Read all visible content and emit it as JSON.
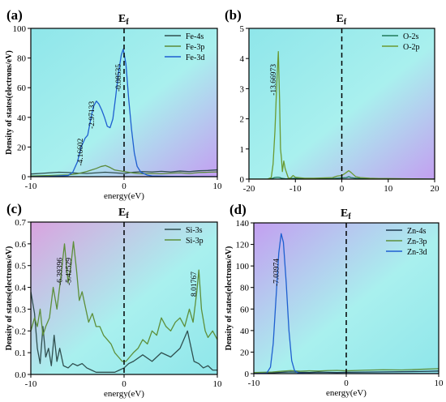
{
  "figure": {
    "fermi_label": "E",
    "fermi_sub": "f"
  },
  "chart_data": [
    {
      "type": "line",
      "panel_label": "(a)",
      "xlabel": "energy(eV)",
      "ylabel": "Density of states(electrons/eV)",
      "xlim": [
        -10,
        10
      ],
      "ylim": [
        0,
        100
      ],
      "xticks": [
        -10,
        0,
        10
      ],
      "yticks": [
        0,
        20,
        40,
        60,
        80,
        100
      ],
      "fermi_x": 0,
      "background": {
        "left": "#8fe6ea",
        "right": "#c39ff0"
      },
      "legend": {
        "placement": "top-right"
      },
      "series": [
        {
          "name": "Fe-4s",
          "color": "#2f4f4f",
          "x": [
            -10,
            -9,
            -8,
            -7,
            -6,
            -5,
            -4,
            -3,
            -2,
            -1,
            0,
            1,
            2,
            3,
            4,
            5,
            6,
            7,
            8,
            9,
            10
          ],
          "y": [
            1.8,
            2.2,
            2.6,
            3.0,
            2.8,
            2.4,
            2.2,
            2.6,
            3.0,
            2.6,
            2.2,
            3.0,
            3.4,
            3.2,
            3.6,
            3.2,
            3.8,
            3.4,
            4.0,
            4.2,
            4.6
          ]
        },
        {
          "name": "Fe-3p",
          "color": "#5a8a3a",
          "x": [
            -10,
            -8,
            -6,
            -5,
            -4,
            -3.5,
            -3,
            -2.5,
            -2,
            -1.5,
            -1,
            0,
            1,
            2,
            3,
            4,
            5,
            6,
            7,
            8,
            9,
            10
          ],
          "y": [
            0.5,
            0.8,
            1.2,
            2.0,
            3.5,
            4.5,
            5.5,
            6.8,
            7.5,
            6.2,
            4.5,
            3.5,
            2.5,
            2.0,
            2.2,
            2.0,
            2.4,
            2.6,
            2.2,
            2.8,
            3.0,
            3.2
          ]
        },
        {
          "name": "Fe-3d",
          "color": "#1e5fd0",
          "x": [
            -10,
            -8,
            -6,
            -5.5,
            -5,
            -4.6,
            -4.17,
            -3.9,
            -3.6,
            -3.3,
            -2.97,
            -2.7,
            -2.4,
            -2.1,
            -1.8,
            -1.5,
            -1.2,
            -0.9,
            -0.6,
            -0.3,
            -0.09,
            0.2,
            0.5,
            0.8,
            1.1,
            1.4,
            1.8,
            2.5,
            3,
            5,
            7,
            10
          ],
          "y": [
            0,
            0.2,
            0.8,
            3,
            10,
            20,
            26,
            28,
            38,
            47,
            51,
            49,
            45,
            40,
            34,
            33,
            39,
            54,
            70,
            82,
            86,
            76,
            52,
            32,
            16,
            7,
            3,
            1,
            0.5,
            0.2,
            0.1,
            0
          ]
        }
      ],
      "annotations": [
        {
          "text": "-4.16602",
          "x": -4.17,
          "y": 27
        },
        {
          "text": "-2.97133",
          "x": -2.97,
          "y": 52
        },
        {
          "text": "-0.08535",
          "x": -0.09,
          "y": 87
        }
      ]
    },
    {
      "type": "line",
      "panel_label": "(b)",
      "xlabel": "",
      "ylabel": "",
      "xlim": [
        -20,
        20
      ],
      "ylim": [
        0,
        5
      ],
      "xticks": [
        -20,
        -10,
        0,
        10,
        20
      ],
      "yticks": [
        0,
        1,
        2,
        3,
        4,
        5
      ],
      "fermi_x": 0,
      "background": {
        "left": "#8fe6ea",
        "right": "#c39ff0"
      },
      "legend": {
        "placement": "top-right"
      },
      "series": [
        {
          "name": "O-2s",
          "color": "#1f7a5a",
          "x": [
            -20,
            -16,
            -15,
            -14.5,
            -14,
            -13.67,
            -13.3,
            -13,
            -12.5,
            -12,
            -11,
            -10,
            -8,
            -6,
            -4,
            -2,
            -1,
            0,
            1,
            1.5,
            2,
            3,
            5,
            10,
            15,
            20
          ],
          "y": [
            0,
            0,
            0.02,
            0.05,
            0.06,
            0.06,
            0.05,
            0.03,
            0.02,
            0.01,
            0.02,
            0.03,
            0.01,
            0.01,
            0.01,
            0.02,
            0.03,
            0.04,
            0.05,
            0.08,
            0.05,
            0.03,
            0.01,
            0.01,
            0.005,
            0
          ]
        },
        {
          "name": "O-2p",
          "color": "#6a9a32",
          "x": [
            -20,
            -16,
            -15.2,
            -14.8,
            -14.4,
            -14.0,
            -13.67,
            -13.4,
            -13.2,
            -13.0,
            -12.8,
            -12.5,
            -12.2,
            -11.5,
            -11,
            -10.5,
            -10,
            -8,
            -6,
            -4,
            -2,
            -1,
            0,
            0.8,
            1.5,
            2,
            2.5,
            3,
            4,
            6,
            8,
            10,
            15,
            20
          ],
          "y": [
            0,
            0,
            0.05,
            0.5,
            1.6,
            3.2,
            4.23,
            2.6,
            1.0,
            0.7,
            0.25,
            0.6,
            0.35,
            0.03,
            0.04,
            0.12,
            0.06,
            0.03,
            0.03,
            0.04,
            0.05,
            0.1,
            0.12,
            0.2,
            0.28,
            0.22,
            0.15,
            0.08,
            0.05,
            0.03,
            0.02,
            0.02,
            0.01,
            0
          ]
        }
      ],
      "annotations": [
        {
          "text": "-13.66973",
          "x": -13.67,
          "y": 4.2
        }
      ]
    },
    {
      "type": "line",
      "panel_label": "(c)",
      "xlabel": "energy(eV)",
      "ylabel": "Density of states(electrons/eV)",
      "xlim": [
        -10,
        10
      ],
      "ylim": [
        0,
        0.7
      ],
      "xticks": [
        -10,
        0,
        10
      ],
      "yticks": [
        0.0,
        0.1,
        0.2,
        0.3,
        0.4,
        0.5,
        0.6,
        0.7
      ],
      "fermi_x": 0,
      "background": {
        "left": "#d9a3df",
        "right": "#8fe6ea"
      },
      "legend": {
        "placement": "top-right"
      },
      "series": [
        {
          "name": "Si-3s",
          "color": "#2f4f4f",
          "x": [
            -10,
            -9.6,
            -9.3,
            -9.0,
            -8.7,
            -8.4,
            -8.1,
            -7.8,
            -7.5,
            -7.2,
            -6.9,
            -6.5,
            -6,
            -5.5,
            -5,
            -4.5,
            -4,
            -3.5,
            -3,
            -2.5,
            -2,
            -1.5,
            -1,
            -0.5,
            0,
            0.5,
            1,
            2,
            3,
            4,
            5,
            6,
            6.5,
            6.8,
            7,
            7.5,
            8,
            8.5,
            9,
            9.5,
            10
          ],
          "y": [
            0.38,
            0.28,
            0.12,
            0.05,
            0.22,
            0.08,
            0.12,
            0.04,
            0.18,
            0.06,
            0.12,
            0.04,
            0.03,
            0.05,
            0.04,
            0.05,
            0.03,
            0.02,
            0.01,
            0.01,
            0.01,
            0.01,
            0.01,
            0.02,
            0.03,
            0.05,
            0.06,
            0.09,
            0.06,
            0.1,
            0.08,
            0.12,
            0.17,
            0.2,
            0.16,
            0.06,
            0.05,
            0.03,
            0.04,
            0.02,
            0.02
          ]
        },
        {
          "name": "Si-3p",
          "color": "#5d8f3a",
          "x": [
            -10,
            -9.6,
            -9.3,
            -9.0,
            -8.7,
            -8.4,
            -8.0,
            -7.6,
            -7.2,
            -6.8,
            -6.39,
            -6.0,
            -5.7,
            -5.43,
            -5.1,
            -4.8,
            -4.5,
            -4.1,
            -3.8,
            -3.4,
            -3.0,
            -2.6,
            -2.2,
            -1.8,
            -1.4,
            -1.0,
            -0.6,
            -0.2,
            0.2,
            0.6,
            1.0,
            1.5,
            2.0,
            2.5,
            3.0,
            3.5,
            4.0,
            4.5,
            5.0,
            5.5,
            6.0,
            6.5,
            7.0,
            7.4,
            7.8,
            8.02,
            8.3,
            8.7,
            9.0,
            9.5,
            10
          ],
          "y": [
            0.2,
            0.26,
            0.22,
            0.3,
            0.18,
            0.22,
            0.26,
            0.4,
            0.3,
            0.44,
            0.6,
            0.42,
            0.5,
            0.61,
            0.48,
            0.34,
            0.38,
            0.3,
            0.24,
            0.28,
            0.22,
            0.22,
            0.18,
            0.16,
            0.14,
            0.1,
            0.08,
            0.06,
            0.06,
            0.08,
            0.1,
            0.12,
            0.16,
            0.14,
            0.2,
            0.18,
            0.26,
            0.22,
            0.2,
            0.24,
            0.26,
            0.22,
            0.3,
            0.24,
            0.38,
            0.48,
            0.3,
            0.2,
            0.17,
            0.2,
            0.16
          ]
        }
      ],
      "annotations": [
        {
          "text": "-6.39396",
          "x": -6.39,
          "y": 0.6
        },
        {
          "text": "-5.42529",
          "x": -5.43,
          "y": 0.61
        },
        {
          "text": "8.01767",
          "x": 8.02,
          "y": 0.48
        }
      ]
    },
    {
      "type": "line",
      "panel_label": "(d)",
      "xlabel": "energy(eV)",
      "ylabel": "Density of states(electrons/eV)",
      "xlim": [
        -10,
        10
      ],
      "ylim": [
        0,
        140
      ],
      "xticks": [
        -10,
        0,
        10
      ],
      "yticks": [
        0,
        20,
        40,
        60,
        80,
        100,
        120,
        140
      ],
      "fermi_x": 0,
      "background": {
        "left": "#c39ff0",
        "right": "#8fe6ea"
      },
      "legend": {
        "placement": "top-right"
      },
      "series": [
        {
          "name": "Zn-4s",
          "color": "#1f3a4f",
          "x": [
            -10,
            -8,
            -7,
            -6,
            -5,
            -4,
            -3,
            -2,
            -1,
            0,
            2,
            4,
            6,
            8,
            10
          ],
          "y": [
            0.5,
            0.8,
            1.2,
            1.6,
            1.2,
            1.0,
            1.4,
            1.2,
            1.0,
            1.2,
            1.4,
            1.6,
            1.8,
            2.0,
            2.4
          ]
        },
        {
          "name": "Zn-3p",
          "color": "#5d8f3a",
          "x": [
            -10,
            -8,
            -7,
            -6,
            -5,
            -4,
            -3,
            -2,
            -1,
            0,
            2,
            4,
            6,
            8,
            10
          ],
          "y": [
            1.0,
            1.5,
            2.2,
            2.8,
            2.2,
            2.6,
            2.4,
            2.8,
            3.0,
            2.6,
            3.2,
            3.6,
            3.4,
            4.0,
            4.6
          ]
        },
        {
          "name": "Zn-3d",
          "color": "#1e5fd0",
          "x": [
            -10,
            -8.6,
            -8.2,
            -7.9,
            -7.6,
            -7.3,
            -7.04,
            -6.8,
            -6.5,
            -6.2,
            -5.9,
            -5.6,
            -5.2,
            -4,
            0,
            10
          ],
          "y": [
            0,
            0.5,
            6,
            28,
            70,
            112,
            130,
            122,
            85,
            40,
            12,
            3,
            0.5,
            0,
            0,
            0
          ]
        }
      ],
      "annotations": [
        {
          "text": "-7.03974",
          "x": -7.04,
          "y": 128
        }
      ]
    }
  ]
}
